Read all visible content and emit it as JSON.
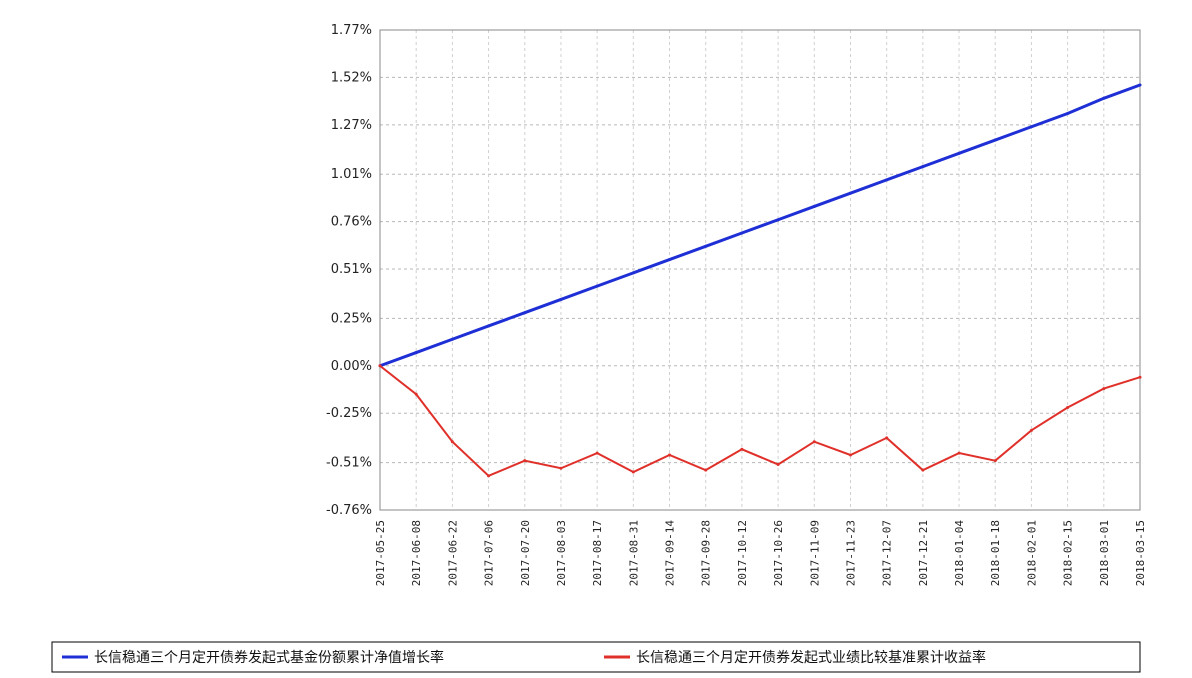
{
  "chart_data": {
    "type": "line",
    "title": "",
    "xlabel": "",
    "ylabel": "",
    "grid": true,
    "legend_placement": "bottom",
    "y_ticks": [
      "1.77%",
      "1.52%",
      "1.27%",
      "1.01%",
      "0.76%",
      "0.51%",
      "0.25%",
      "0.00%",
      "-0.25%",
      "-0.51%",
      "-0.76%"
    ],
    "ylim": [
      -0.76,
      1.77
    ],
    "x": [
      "2017-05-25",
      "2017-06-08",
      "2017-06-22",
      "2017-07-06",
      "2017-07-20",
      "2017-08-03",
      "2017-08-17",
      "2017-08-31",
      "2017-09-14",
      "2017-09-28",
      "2017-10-12",
      "2017-10-26",
      "2017-11-09",
      "2017-11-23",
      "2017-12-07",
      "2017-12-21",
      "2018-01-04",
      "2018-01-18",
      "2018-02-01",
      "2018-02-15",
      "2018-03-01",
      "2018-03-15"
    ],
    "series": [
      {
        "name": "长信稳通三个月定开债券发起式基金份额累计净值增长率",
        "color": "#1f2fd6",
        "values": [
          0.0,
          0.07,
          0.14,
          0.21,
          0.28,
          0.35,
          0.42,
          0.49,
          0.56,
          0.63,
          0.7,
          0.77,
          0.84,
          0.91,
          0.98,
          1.05,
          1.12,
          1.19,
          1.26,
          1.33,
          1.41,
          1.48
        ]
      },
      {
        "name": "长信稳通三个月定开债券发起式业绩比较基准累计收益率",
        "color": "#e0302a",
        "values": [
          0.0,
          -0.15,
          -0.4,
          -0.58,
          -0.5,
          -0.54,
          -0.46,
          -0.56,
          -0.47,
          -0.55,
          -0.44,
          -0.52,
          -0.4,
          -0.47,
          -0.38,
          -0.55,
          -0.46,
          -0.5,
          -0.34,
          -0.22,
          -0.12,
          -0.06
        ]
      }
    ]
  },
  "legend": {
    "nav_label": "长信稳通三个月定开债券发起式基金份额累计净值增长率",
    "bench_label": "长信稳通三个月定开债券发起式业绩比较基准累计收益率"
  }
}
